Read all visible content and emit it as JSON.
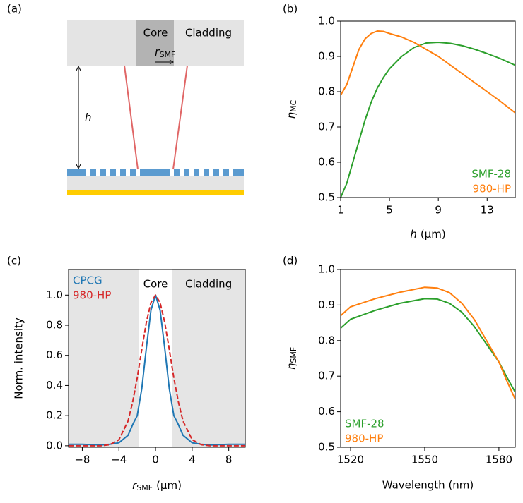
{
  "chart_data": [
    {
      "type": "diagram",
      "panel_label": "(a)",
      "labels": {
        "core": "Core",
        "cladding": "Cladding",
        "r": "r",
        "r_sub": "SMF",
        "h": "h"
      }
    },
    {
      "type": "line",
      "panel_label": "(b)",
      "xlabel": {
        "symbol": "h",
        "unit": "(μm)"
      },
      "ylabel": {
        "symbol": "η",
        "sub": "MC"
      },
      "xlim": [
        1,
        15.3
      ],
      "ylim": [
        0.5,
        1.0
      ],
      "xticks": [
        1,
        5,
        9,
        13
      ],
      "yticks": [
        0.5,
        0.6,
        0.7,
        0.8,
        0.9,
        {
          "value": 1.0,
          "label": "1.0"
        }
      ],
      "legend": "lower right",
      "x": [
        1,
        1.5,
        2,
        2.5,
        3,
        3.5,
        4,
        4.5,
        5,
        6,
        7,
        8,
        9,
        10,
        11,
        12,
        13,
        14,
        15.3
      ],
      "series": [
        {
          "name": "SMF-28",
          "color": "#2ca02c",
          "values": [
            0.5,
            0.54,
            0.6,
            0.66,
            0.72,
            0.77,
            0.81,
            0.84,
            0.865,
            0.9,
            0.925,
            0.938,
            0.94,
            0.937,
            0.93,
            0.92,
            0.908,
            0.895,
            0.875
          ]
        },
        {
          "name": "980-HP",
          "color": "#ff7f0e",
          "values": [
            0.79,
            0.82,
            0.87,
            0.92,
            0.95,
            0.965,
            0.972,
            0.971,
            0.965,
            0.955,
            0.94,
            0.92,
            0.9,
            0.875,
            0.85,
            0.825,
            0.8,
            0.775,
            0.74
          ]
        }
      ]
    },
    {
      "type": "line",
      "panel_label": "(c)",
      "xlabel": {
        "symbol": "r",
        "sub": "SMF",
        "unit": "(μm)"
      },
      "ylabel": "Norm. intensity",
      "xlim": [
        -9.5,
        9.8
      ],
      "ylim": [
        -0.01,
        1.17
      ],
      "xticks": [
        {
          "value": -8,
          "label": "−8"
        },
        {
          "value": -4,
          "label": "−4"
        },
        0,
        4,
        8
      ],
      "yticks": [
        {
          "value": 0,
          "label": "0.0"
        },
        0.2,
        0.4,
        0.6,
        0.8,
        {
          "value": 1.0,
          "label": "1.0"
        }
      ],
      "legend": "upper left",
      "shaded_regions": [
        [
          -9.5,
          -1.8
        ],
        [
          1.8,
          9.8
        ]
      ],
      "region_labels": [
        "Core",
        "Cladding"
      ],
      "x": [
        -9.5,
        -8,
        -6,
        -5,
        -4,
        -3,
        -2.5,
        -2,
        -1.5,
        -1,
        -0.5,
        0,
        0.5,
        1,
        1.5,
        2,
        2.5,
        3,
        4,
        5,
        6,
        8,
        9.8
      ],
      "series": [
        {
          "name": "CPCG",
          "color": "#1f77b4",
          "linestyle": "solid",
          "values": [
            0.01,
            0.01,
            0.005,
            0.01,
            0.02,
            0.07,
            0.14,
            0.2,
            0.38,
            0.65,
            0.9,
            1.0,
            0.9,
            0.65,
            0.38,
            0.2,
            0.14,
            0.07,
            0.02,
            0.01,
            0.005,
            0.01,
            0.01
          ]
        },
        {
          "name": "980-HP",
          "color": "#d62728",
          "linestyle": "dashed",
          "values": [
            0,
            0,
            0,
            0.007,
            0.04,
            0.165,
            0.29,
            0.45,
            0.64,
            0.82,
            0.95,
            1.0,
            0.95,
            0.82,
            0.64,
            0.45,
            0.29,
            0.165,
            0.04,
            0.007,
            0,
            0,
            0
          ]
        }
      ]
    },
    {
      "type": "line",
      "panel_label": "(d)",
      "xlabel": "Wavelength (nm)",
      "ylabel": {
        "symbol": "η",
        "sub": "SMF"
      },
      "xlim": [
        1516,
        1586.6
      ],
      "ylim": [
        0.5,
        1.0
      ],
      "xticks": [
        1520,
        1550,
        1580
      ],
      "yticks": [
        0.5,
        0.6,
        0.7,
        0.8,
        0.9,
        {
          "value": 1.0,
          "label": "1.0"
        }
      ],
      "legend": "lower left",
      "x": [
        1516,
        1520,
        1530,
        1540,
        1550,
        1555,
        1560,
        1565,
        1570,
        1575,
        1580,
        1583,
        1586.6
      ],
      "series": [
        {
          "name": "SMF-28",
          "color": "#2ca02c",
          "values": [
            0.835,
            0.86,
            0.885,
            0.905,
            0.918,
            0.917,
            0.905,
            0.88,
            0.84,
            0.79,
            0.74,
            0.7,
            0.655
          ]
        },
        {
          "name": "980-HP",
          "color": "#ff7f0e",
          "values": [
            0.87,
            0.895,
            0.918,
            0.936,
            0.95,
            0.948,
            0.935,
            0.905,
            0.86,
            0.8,
            0.74,
            0.69,
            0.635
          ]
        }
      ]
    }
  ]
}
